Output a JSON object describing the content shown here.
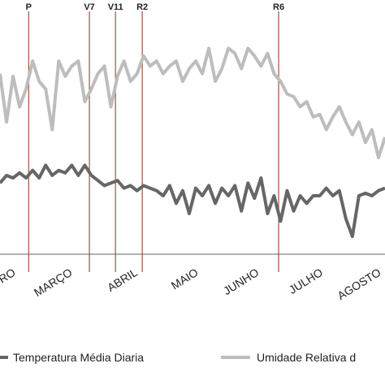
{
  "chart_data": {
    "type": "line",
    "xlim": [
      0,
      59
    ],
    "ylim": [
      0,
      100
    ],
    "xticks": [
      {
        "value": 2.5,
        "label": "RO"
      },
      {
        "value": 11.2,
        "label": "MARÇO"
      },
      {
        "value": 21.2,
        "label": "ABRIL"
      },
      {
        "value": 30.5,
        "label": "MAIO"
      },
      {
        "value": 39.8,
        "label": "JUNHO"
      },
      {
        "value": 49.6,
        "label": "JULHO"
      },
      {
        "value": 58.5,
        "label": "AGOSTO"
      }
    ],
    "markers": [
      {
        "label": "P",
        "x": 4.4,
        "color": "#a0523a"
      },
      {
        "label": "V7",
        "x": 13.7,
        "color": "#a0523a"
      },
      {
        "label": "V11",
        "x": 17.7,
        "color": "#a0523a"
      },
      {
        "label": "R2",
        "x": 21.8,
        "color": "#a0523a"
      },
      {
        "label": "R6",
        "x": 42.7,
        "color": "#a0523a"
      }
    ],
    "series": [
      {
        "name": "Temperatura Média Diaria",
        "color": "#666666",
        "values": [
          28,
          31,
          30,
          32,
          30,
          33,
          30,
          35,
          31,
          33,
          32,
          35,
          31,
          35,
          31,
          29,
          27,
          28,
          29,
          26,
          27,
          25,
          27,
          26,
          25,
          23,
          27,
          20,
          25,
          16,
          26,
          23,
          27,
          20,
          26,
          23,
          27,
          17,
          28,
          22,
          30,
          16,
          23,
          13,
          25,
          17,
          23,
          20,
          23,
          23,
          26,
          23,
          25,
          14,
          7,
          23,
          24,
          23,
          25,
          26
        ]
      },
      {
        "name": "Umidade Relativa d",
        "color": "#bdbdbd",
        "values": [
          71,
          52,
          70,
          58,
          65,
          76,
          68,
          65,
          49,
          76,
          70,
          74,
          76,
          60,
          65,
          71,
          74,
          58,
          70,
          76,
          68,
          71,
          78,
          74,
          76,
          71,
          74,
          76,
          68,
          73,
          76,
          71,
          81,
          68,
          73,
          81,
          79,
          73,
          81,
          78,
          74,
          79,
          71,
          68,
          63,
          62,
          58,
          60,
          54,
          55,
          49,
          54,
          58,
          52,
          47,
          52,
          44,
          49,
          38,
          46
        ]
      }
    ]
  }
}
